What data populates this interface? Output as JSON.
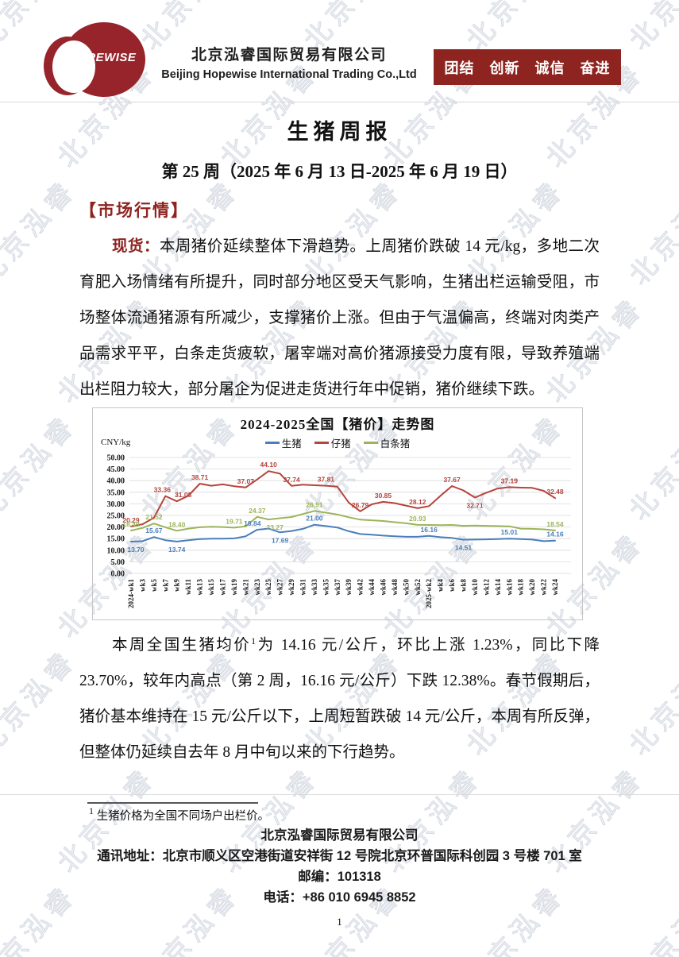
{
  "brand_color": "#8e2420",
  "watermark": {
    "text": "北京泓睿"
  },
  "header": {
    "logo_text": "HOPEWISE",
    "company_cn": "北京泓睿国际贸易有限公司",
    "company_en": "Beijing Hopewise International Trading Co.,Ltd",
    "banner_slogans": "团结　创新　诚信　奋进"
  },
  "title": "生猪周报",
  "subtitle": "第 25 周（2025 年 6 月 13 日-2025 年 6 月 19 日）",
  "section_heading": "【市场行情】",
  "paragraph1": {
    "lead": "现货：",
    "body": "本周猪价延续整体下滑趋势。上周猪价跌破 14 元/kg，多地二次育肥入场情绪有所提升，同时部分地区受天气影响，生猪出栏运输受阻，市场整体流通猪源有所减少，支撑猪价上涨。但由于气温偏高，终端对肉类产品需求平平，白条走货疲软，屠宰端对高价猪源接受力度有限，导致养殖端出栏阻力较大，部分屠企为促进走货进行年中促销，猪价继续下跌。"
  },
  "chart_data": {
    "type": "line",
    "title": "2024-2025全国【猪价】走势图",
    "unit_label": "CNY/kg",
    "ylim": [
      0,
      50
    ],
    "ytick_step": 5,
    "grid": true,
    "legend_position": "top",
    "categories": [
      "2024-wk1",
      "wk3",
      "wk5",
      "wk7",
      "wk9",
      "wk11",
      "wk13",
      "wk15",
      "wk17",
      "wk19",
      "wk21",
      "wk23",
      "wk25",
      "wk27",
      "wk29",
      "wk31",
      "wk33",
      "wk35",
      "wk37",
      "wk39",
      "wk42",
      "wk44",
      "wk46",
      "wk48",
      "wk50",
      "wk52",
      "2025-wk2",
      "wk4",
      "wk6",
      "wk8",
      "wk10",
      "wk12",
      "wk14",
      "wk16",
      "wk18",
      "wk20",
      "wk22",
      "wk24"
    ],
    "series": [
      {
        "name": "生猪",
        "color": "#4a7ebb",
        "values": [
          13.7,
          13.9,
          15.67,
          14.3,
          13.74,
          14.3,
          14.8,
          15.0,
          15.0,
          15.1,
          16.0,
          18.84,
          19.3,
          17.69,
          18.3,
          19.2,
          21.0,
          20.4,
          19.8,
          18.2,
          17.0,
          16.7,
          16.3,
          16.0,
          15.8,
          15.8,
          16.16,
          15.6,
          15.3,
          14.51,
          14.6,
          14.7,
          14.8,
          15.01,
          14.8,
          14.6,
          13.9,
          14.16
        ],
        "point_labels": [
          {
            "i": 0,
            "v": "13.70",
            "pos": "below",
            "dx": 6
          },
          {
            "i": 2,
            "v": "15.67",
            "pos": "above"
          },
          {
            "i": 4,
            "v": "13.74",
            "pos": "below"
          },
          {
            "i": 11,
            "v": "18.84",
            "pos": "above",
            "dx": -6
          },
          {
            "i": 13,
            "v": "17.69",
            "pos": "below"
          },
          {
            "i": 16,
            "v": "21.00",
            "pos": "above"
          },
          {
            "i": 26,
            "v": "16.16",
            "pos": "above"
          },
          {
            "i": 29,
            "v": "14.51",
            "pos": "below"
          },
          {
            "i": 33,
            "v": "15.01",
            "pos": "above"
          },
          {
            "i": 37,
            "v": "14.16",
            "pos": "above"
          }
        ]
      },
      {
        "name": "仔猪",
        "color": "#b5443c",
        "values": [
          20.29,
          21.2,
          24.0,
          33.36,
          31.08,
          33.5,
          38.71,
          37.8,
          38.4,
          37.6,
          37.07,
          40.5,
          44.1,
          43.0,
          37.74,
          38.3,
          38.0,
          37.81,
          37.4,
          30.5,
          26.79,
          29.8,
          30.85,
          30.3,
          29.2,
          28.12,
          29.0,
          33.5,
          37.67,
          35.8,
          32.71,
          34.8,
          36.6,
          37.19,
          37.0,
          36.9,
          35.6,
          32.48
        ],
        "point_labels": [
          {
            "i": 0,
            "v": "20.29",
            "pos": "above"
          },
          {
            "i": 3,
            "v": "33.36",
            "pos": "above",
            "dx": -4
          },
          {
            "i": 4,
            "v": "31.08",
            "pos": "above",
            "dx": 8
          },
          {
            "i": 6,
            "v": "38.71",
            "pos": "above"
          },
          {
            "i": 10,
            "v": "37.07",
            "pos": "above"
          },
          {
            "i": 12,
            "v": "44.10",
            "pos": "above"
          },
          {
            "i": 14,
            "v": "37.74",
            "pos": "above"
          },
          {
            "i": 17,
            "v": "37.81",
            "pos": "above"
          },
          {
            "i": 20,
            "v": "26.79",
            "pos": "above"
          },
          {
            "i": 22,
            "v": "30.85",
            "pos": "above"
          },
          {
            "i": 25,
            "v": "28.12",
            "pos": "above"
          },
          {
            "i": 28,
            "v": "37.67",
            "pos": "above"
          },
          {
            "i": 30,
            "v": "32.71",
            "pos": "below"
          },
          {
            "i": 33,
            "v": "37.19",
            "pos": "above"
          },
          {
            "i": 37,
            "v": "32.48",
            "pos": "above"
          }
        ]
      },
      {
        "name": "白条猪",
        "color": "#9cb45a",
        "values": [
          18.49,
          19.6,
          21.52,
          19.9,
          18.4,
          19.3,
          19.9,
          20.1,
          20.0,
          19.71,
          20.3,
          24.37,
          23.27,
          23.8,
          24.3,
          25.6,
          26.91,
          26.2,
          25.4,
          24.2,
          23.2,
          22.9,
          22.6,
          22.1,
          21.6,
          20.93,
          20.9,
          20.8,
          20.9,
          20.5,
          20.6,
          20.5,
          20.4,
          20.3,
          19.3,
          19.2,
          19.0,
          18.54
        ],
        "point_labels": [
          {
            "i": 0,
            "v": "18.49",
            "pos": "above"
          },
          {
            "i": 2,
            "v": "21.52",
            "pos": "above"
          },
          {
            "i": 4,
            "v": "18.40",
            "pos": "above"
          },
          {
            "i": 9,
            "v": "19.71",
            "pos": "above"
          },
          {
            "i": 11,
            "v": "24.37",
            "pos": "above"
          },
          {
            "i": 12,
            "v": "23.27",
            "pos": "below",
            "dx": 8
          },
          {
            "i": 16,
            "v": "26.91",
            "pos": "above"
          },
          {
            "i": 25,
            "v": "20.93",
            "pos": "above"
          },
          {
            "i": 37,
            "v": "18.54",
            "pos": "above"
          }
        ]
      }
    ]
  },
  "paragraph2": {
    "before_sup": "本周全国生猪均价",
    "sup": "1",
    "after_sup": "为 14.16 元/公斤，环比上涨 1.23%，同比下降 23.70%，较年内高点（第 2 周，16.16 元/公斤）下跌 12.38%。春节假期后，猪价基本维持在 15 元/公斤以下，上周短暂跌破 14 元/公斤，本周有所反弹，但整体仍延续自去年 8 月中旬以来的下行趋势。"
  },
  "footnote": {
    "sup": "1",
    "text": "生猪价格为全国不同场户出栏价。"
  },
  "footer": {
    "company": "北京泓睿国际贸易有限公司",
    "address": "通讯地址：北京市顺义区空港街道安祥街 12 号院北京环普国际科创园 3 号楼 701 室",
    "postcode": "邮编：101318",
    "phone": "电话：+86 010 6945 8852",
    "page_number": "1"
  }
}
